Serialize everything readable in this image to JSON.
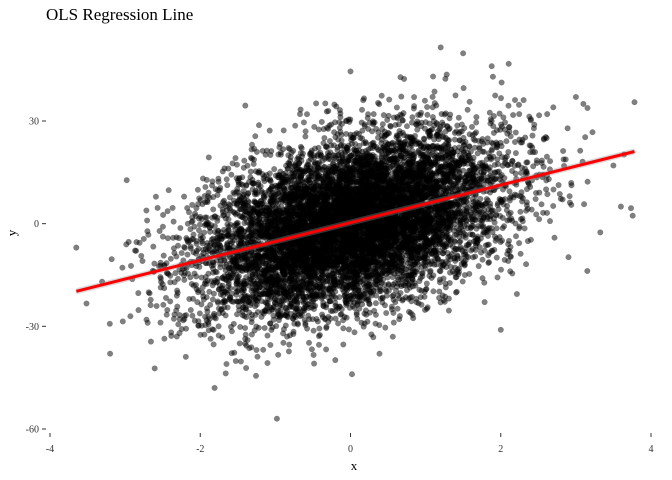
{
  "chart_data": {
    "type": "scatter",
    "title": "OLS Regression Line",
    "xlabel": "x",
    "ylabel": "y",
    "xlim": [
      -4,
      4
    ],
    "ylim": [
      -60,
      50
    ],
    "x_ticks": [
      -4,
      -2,
      0,
      2,
      4
    ],
    "y_ticks": [
      -60,
      -30,
      0,
      30
    ],
    "x_tick_labels": [
      "-4",
      "-2",
      "0",
      "2",
      "4"
    ],
    "y_tick_labels": [
      "-60",
      "-30",
      "0",
      "30"
    ],
    "grid": false,
    "legend": "none",
    "points": {
      "approx_count": 10000,
      "x_mean": 0,
      "x_sd": 1,
      "y_mean": 0,
      "y_sd": 13,
      "correlation": 0.42,
      "color": "#000000",
      "opacity": 0.5
    },
    "outliers": [
      {
        "x": -3.65,
        "y": -7
      },
      {
        "x": 3.78,
        "y": 35.5
      },
      {
        "x": -0.98,
        "y": -57
      },
      {
        "x": 1.2,
        "y": 51.5
      },
      {
        "x": 1.88,
        "y": 46
      },
      {
        "x": 0.02,
        "y": -44
      },
      {
        "x": 3.6,
        "y": 5
      },
      {
        "x": 3.5,
        "y": 17
      },
      {
        "x": -3.2,
        "y": -38
      },
      {
        "x": 3.1,
        "y": 35
      },
      {
        "x": 2.0,
        "y": -31
      },
      {
        "x": -1.65,
        "y": -41
      },
      {
        "x": 2.7,
        "y": 34
      },
      {
        "x": 3.0,
        "y": 37
      },
      {
        "x": -1.4,
        "y": 34.5
      },
      {
        "x": 0.0,
        "y": 44.5
      },
      {
        "x": 1.1,
        "y": 43
      }
    ],
    "regression_line": {
      "intercept": 0.3,
      "slope": 5.5,
      "x_range": [
        -3.65,
        3.78
      ],
      "color": "#ff0000"
    }
  }
}
